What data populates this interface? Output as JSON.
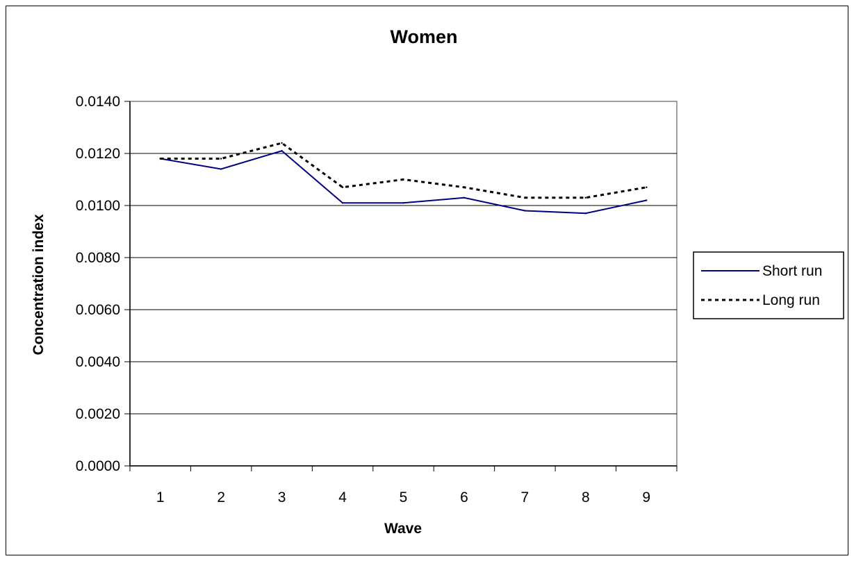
{
  "chart_data": {
    "type": "line",
    "title": "Women",
    "xlabel": "Wave",
    "ylabel": "Concentration index",
    "categories": [
      "1",
      "2",
      "3",
      "4",
      "5",
      "6",
      "7",
      "8",
      "9"
    ],
    "ylim": [
      0,
      0.014
    ],
    "yticks": [
      "0.0000",
      "0.0020",
      "0.0040",
      "0.0060",
      "0.0080",
      "0.0100",
      "0.0120",
      "0.0140"
    ],
    "grid": true,
    "legend_position": "right",
    "series": [
      {
        "name": "Short run",
        "color": "#000080",
        "style": "solid",
        "values": [
          0.0118,
          0.0114,
          0.0121,
          0.0101,
          0.0101,
          0.0103,
          0.0098,
          0.0097,
          0.0102
        ]
      },
      {
        "name": "Long run",
        "color": "#000000",
        "style": "dotted",
        "values": [
          0.0118,
          0.0118,
          0.0124,
          0.0107,
          0.011,
          0.0107,
          0.0103,
          0.0103,
          0.0107
        ]
      }
    ]
  }
}
